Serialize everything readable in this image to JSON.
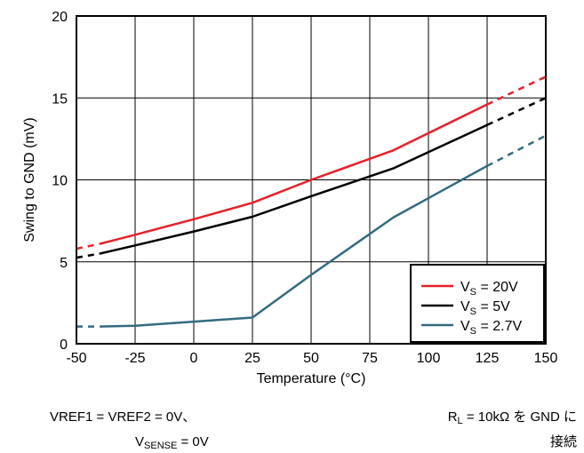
{
  "chart_data": {
    "type": "line",
    "xlabel": "Temperature (°C)",
    "ylabel": "Swing to GND (mV)",
    "xlim": [
      -50,
      150
    ],
    "ylim": [
      0,
      20
    ],
    "x_ticks": [
      "-50",
      "-25",
      "0",
      "25",
      "50",
      "75",
      "100",
      "125",
      "150"
    ],
    "y_ticks": [
      "0",
      "5",
      "10",
      "15",
      "20"
    ],
    "grid": true,
    "legend_position": "bottom-right",
    "series": [
      {
        "name_main": "V",
        "name_sub": "S",
        "name_rest": " = 20V",
        "color": "#e8202a",
        "x": [
          -40,
          -25,
          0,
          25,
          50,
          85,
          125
        ],
        "y": [
          6.1,
          6.65,
          7.6,
          8.6,
          10.0,
          11.8,
          14.6
        ],
        "extrap_left": {
          "x": [
            -50,
            -40
          ],
          "y": [
            5.8,
            6.1
          ]
        },
        "extrap_right": {
          "x": [
            125,
            150
          ],
          "y": [
            14.6,
            16.3
          ]
        }
      },
      {
        "name_main": "V",
        "name_sub": "S",
        "name_rest": " = 5V",
        "color": "#000000",
        "x": [
          -40,
          -25,
          0,
          25,
          50,
          85,
          125
        ],
        "y": [
          5.5,
          6.0,
          6.85,
          7.75,
          9.0,
          10.7,
          13.35
        ],
        "extrap_left": {
          "x": [
            -50,
            -40
          ],
          "y": [
            5.25,
            5.5
          ]
        },
        "extrap_right": {
          "x": [
            125,
            150
          ],
          "y": [
            13.35,
            15.0
          ]
        }
      },
      {
        "name_main": "V",
        "name_sub": "S",
        "name_rest": " = 2.7V",
        "color": "#336b80",
        "x": [
          -40,
          -25,
          0,
          25,
          50,
          85,
          125
        ],
        "y": [
          1.05,
          1.1,
          1.35,
          1.6,
          4.2,
          7.7,
          10.85
        ],
        "extrap_left": {
          "x": [
            -50,
            -40
          ],
          "y": [
            1.05,
            1.05
          ]
        },
        "extrap_right": {
          "x": [
            125,
            150
          ],
          "y": [
            10.85,
            12.7
          ]
        }
      }
    ]
  },
  "notes": {
    "line1": "VREF1 = VREF2 = 0V、",
    "line2_main": "V",
    "line2_sub": "SENSE",
    "line2_rest": " = 0V",
    "right1_main": "R",
    "right1_sub": "L",
    "right1_rest": " = 10kΩ を GND に",
    "right2": "接続"
  }
}
